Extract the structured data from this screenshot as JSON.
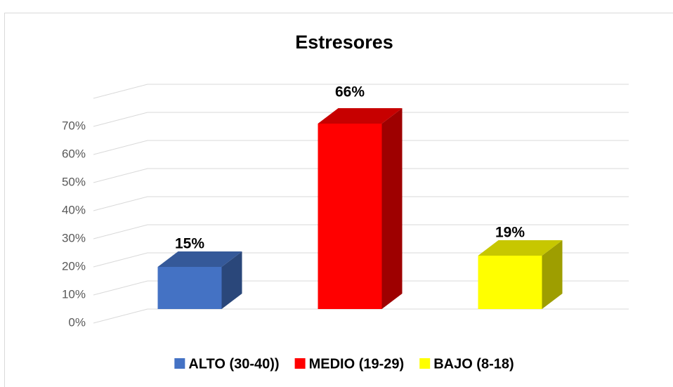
{
  "chart_data": {
    "type": "bar3d",
    "title": "Estresores",
    "series": [
      {
        "name": "ALTO (30-40))",
        "color": "#4472c4",
        "values": [
          15
        ],
        "value_labels": [
          "15%"
        ]
      },
      {
        "name": "MEDIO (19-29)",
        "color": "#ff0000",
        "values": [
          66
        ],
        "value_labels": [
          "66%"
        ]
      },
      {
        "name": "BAJO (8-18)",
        "color": "#ffff00",
        "values": [
          19
        ],
        "value_labels": [
          "19%"
        ]
      }
    ],
    "ylim": [
      0,
      80
    ],
    "yticks": [
      {
        "value": 0,
        "label": "0%"
      },
      {
        "value": 10,
        "label": "10%"
      },
      {
        "value": 20,
        "label": "20%"
      },
      {
        "value": 30,
        "label": "30%"
      },
      {
        "value": 40,
        "label": "40%"
      },
      {
        "value": 50,
        "label": "50%"
      },
      {
        "value": 60,
        "label": "60%"
      },
      {
        "value": 70,
        "label": "70%"
      }
    ],
    "grid": true,
    "legend": "bottom"
  }
}
